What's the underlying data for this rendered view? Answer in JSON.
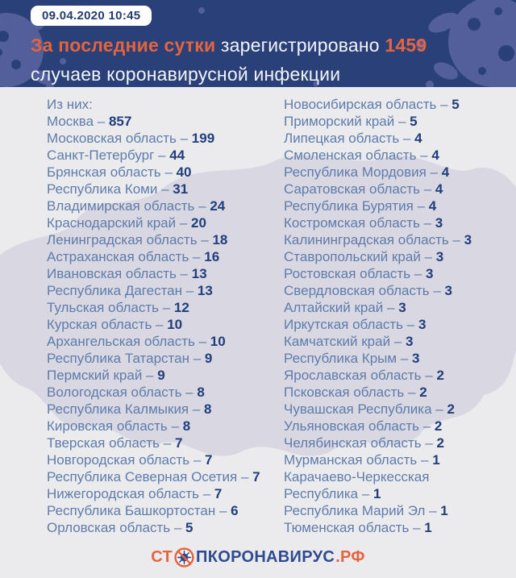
{
  "colors": {
    "header_bg": "#2a4078",
    "decoration_blue": "#535f9b",
    "accent_orange": "#e5643e",
    "headline_white": "#f2f4f9",
    "badge_bg": "#ffffff",
    "badge_text": "#223c72",
    "body_bg": "#ebebee",
    "map_fill": "#d8d7e2",
    "region_name": "#5e7cab",
    "region_value": "#1f3e7c",
    "logo_navy": "#2e4b8f"
  },
  "header": {
    "timestamp": "09.04.2020 10:45",
    "headline": {
      "highlight": "За последние сутки",
      "middle": " зарегистрировано ",
      "number": "1459",
      "tail": " случаев коронавирусной инфекции"
    }
  },
  "list": {
    "intro": "Из них:",
    "separator": "–",
    "left": [
      {
        "name": "Москва",
        "value": "857"
      },
      {
        "name": "Московская область",
        "value": "199"
      },
      {
        "name": "Санкт-Петербург",
        "value": "44"
      },
      {
        "name": "Брянская область",
        "value": "40"
      },
      {
        "name": "Республика Коми",
        "value": "31"
      },
      {
        "name": "Владимирская область",
        "value": "24"
      },
      {
        "name": "Краснодарский край",
        "value": "20"
      },
      {
        "name": "Ленинградская область",
        "value": "18"
      },
      {
        "name": "Астраханская область",
        "value": "16"
      },
      {
        "name": "Ивановская область",
        "value": "13"
      },
      {
        "name": "Республика Дагестан",
        "value": "13"
      },
      {
        "name": "Тульская область",
        "value": "12"
      },
      {
        "name": "Курская область",
        "value": "10"
      },
      {
        "name": "Архангельская область",
        "value": "10"
      },
      {
        "name": "Республика Татарстан",
        "value": "9"
      },
      {
        "name": "Пермский край",
        "value": "9"
      },
      {
        "name": "Вологодская область",
        "value": "8"
      },
      {
        "name": "Республика Калмыкия",
        "value": "8"
      },
      {
        "name": "Кировская область",
        "value": "8"
      },
      {
        "name": "Тверская область",
        "value": "7"
      },
      {
        "name": "Новгородская область",
        "value": "7"
      },
      {
        "name": "Республика Северная Осетия",
        "value": "7"
      },
      {
        "name": "Нижегородская область",
        "value": "7"
      },
      {
        "name": "Республика Башкортостан",
        "value": "6"
      },
      {
        "name": "Орловская область",
        "value": "5"
      }
    ],
    "right": [
      {
        "name": "Новосибирская область",
        "value": "5"
      },
      {
        "name": "Приморский край",
        "value": "5"
      },
      {
        "name": "Липецкая область",
        "value": "4"
      },
      {
        "name": "Смоленская область",
        "value": "4"
      },
      {
        "name": "Республика Мордовия",
        "value": "4"
      },
      {
        "name": "Саратовская область",
        "value": "4"
      },
      {
        "name": "Республика Бурятия",
        "value": "4"
      },
      {
        "name": "Костромская область",
        "value": "3"
      },
      {
        "name": "Калининградская область",
        "value": "3"
      },
      {
        "name": "Ставропольский край",
        "value": "3"
      },
      {
        "name": "Ростовская область",
        "value": "3"
      },
      {
        "name": "Свердловская область",
        "value": "3"
      },
      {
        "name": "Алтайский край",
        "value": "3"
      },
      {
        "name": "Иркутская область",
        "value": "3"
      },
      {
        "name": "Камчатский край",
        "value": "3"
      },
      {
        "name": "Республика Крым",
        "value": "3"
      },
      {
        "name": "Ярославская область",
        "value": "2"
      },
      {
        "name": "Псковская область",
        "value": "2"
      },
      {
        "name": "Чувашская Республика",
        "value": "2"
      },
      {
        "name": "Ульяновская область",
        "value": "2"
      },
      {
        "name": "Челябинская область",
        "value": "2"
      },
      {
        "name": "Мурманская область",
        "value": "1"
      },
      {
        "name": "Карачаево-Черкесская Республика",
        "value": "1"
      },
      {
        "name": "Республика Марий Эл",
        "value": "1"
      },
      {
        "name": "Тюменская область",
        "value": "1"
      }
    ]
  },
  "footer": {
    "logo_prefix": "СТ",
    "logo_icon": "no-virus-icon",
    "logo_middle": "ПКОРОНАВИРУС",
    "logo_suffix": ".РФ"
  }
}
